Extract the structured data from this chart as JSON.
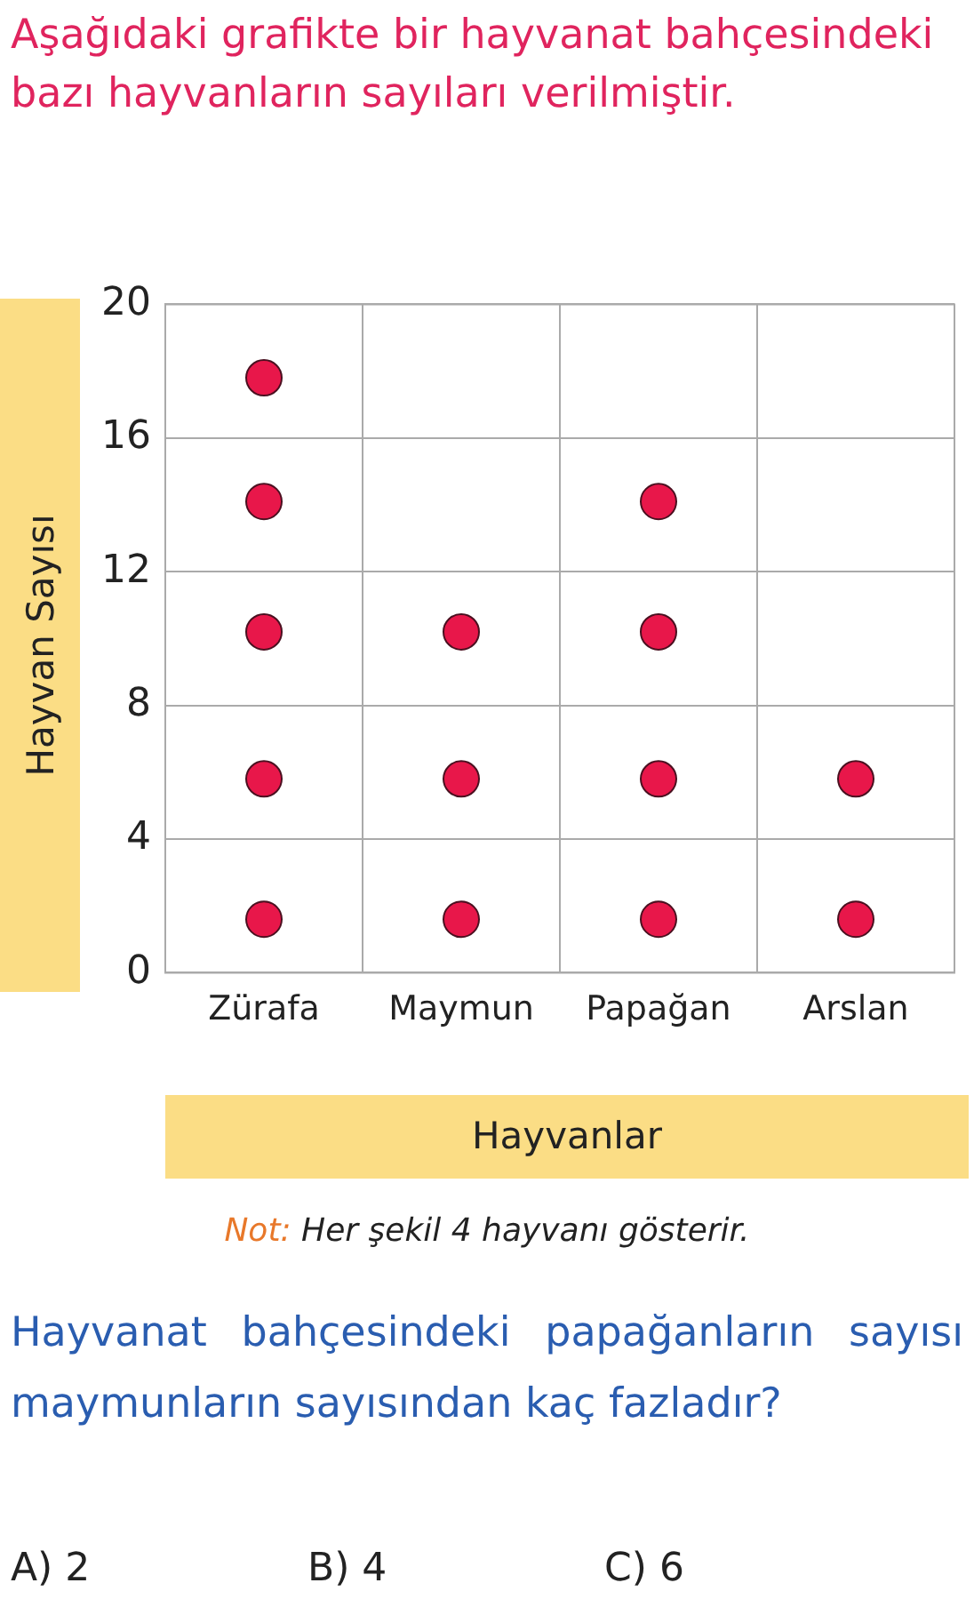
{
  "chart_data": {
    "type": "scatter",
    "title": "Aşağıdaki grafikte bir hayvanat bahçesindeki bazı hayvanların sayıları verilmiştir.",
    "xlabel": "Hayvanlar",
    "ylabel": "Hayvan Sayısı",
    "categories": [
      "Zürafa",
      "Maymun",
      "Papağan",
      "Arslan"
    ],
    "series": [
      {
        "color": "#e8174a",
        "x": [
          "Zürafa",
          "Zürafa",
          "Zürafa",
          "Zürafa",
          "Zürafa",
          "Maymun",
          "Maymun",
          "Maymun",
          "Papağan",
          "Papağan",
          "Papağan",
          "Papağan",
          "Arslan",
          "Arslan"
        ],
        "values": [
          1.6,
          5.8,
          10.2,
          14.1,
          17.8,
          1.6,
          5.8,
          10.2,
          1.6,
          5.8,
          10.2,
          14.1,
          1.6,
          5.8
        ]
      }
    ],
    "ylim": [
      0,
      20
    ],
    "yticks": [
      0,
      4,
      8,
      12,
      16,
      20
    ],
    "grid": true,
    "marker": "circle",
    "annotations": [
      "Not: Her şekil 4 hayvanı gösterir.",
      "Hayvanat bahçesindeki papağanların sayısı maymunların sayısından kaç fazladır?",
      "A) 2",
      "B) 4",
      "C) 6"
    ]
  }
}
